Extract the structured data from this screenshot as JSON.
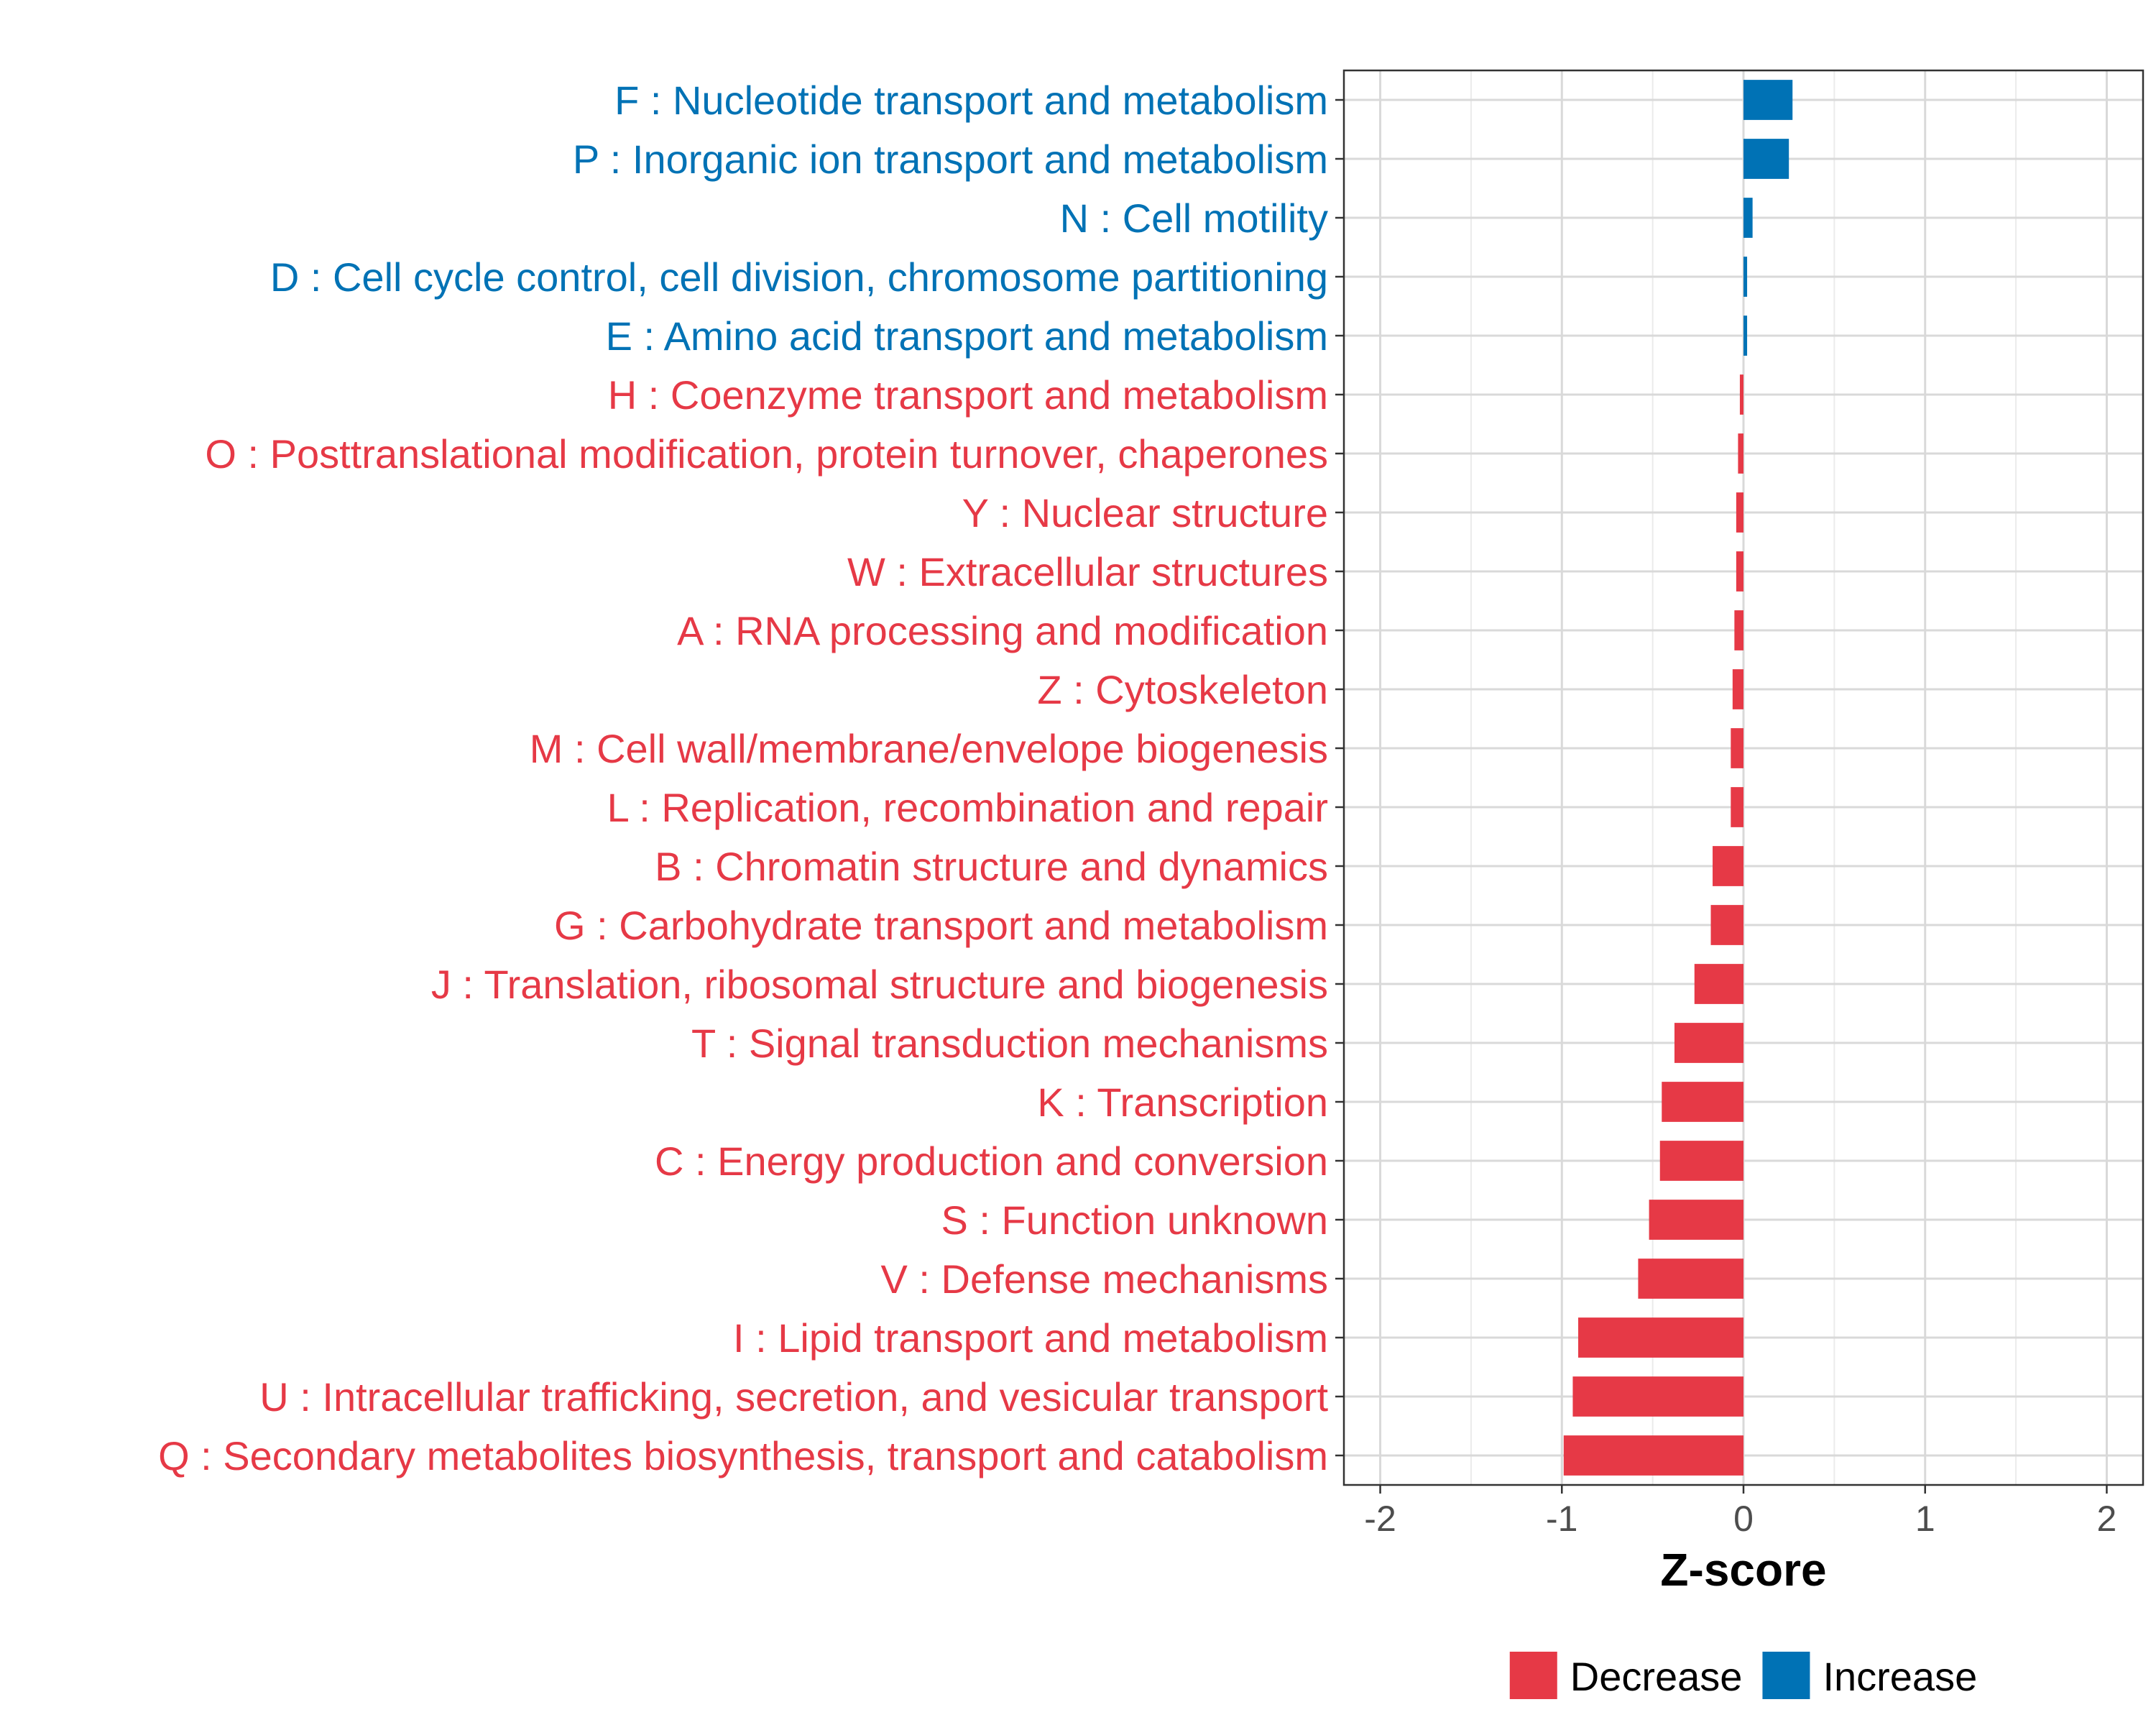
{
  "chart_data": {
    "type": "bar",
    "orientation": "horizontal",
    "xlabel": "Z-score",
    "ylabel": "",
    "xlim": [
      -2.2,
      2.2
    ],
    "x_ticks": [
      -2,
      -1,
      0,
      1,
      2
    ],
    "x_tick_labels": [
      "-2",
      "-1",
      "0",
      "1",
      "2"
    ],
    "grid": true,
    "legend_position": "bottom",
    "colors": {
      "Decrease": "#e63946",
      "Increase": "#0072b5"
    },
    "legend": [
      {
        "label": "Decrease",
        "color": "#e63946"
      },
      {
        "label": "Increase",
        "color": "#0072b5"
      }
    ],
    "categories": [
      "F : Nucleotide transport and metabolism",
      "P : Inorganic ion transport and metabolism",
      "N : Cell motility",
      "D : Cell cycle control, cell division, chromosome partitioning",
      "E : Amino acid transport and metabolism",
      "H : Coenzyme transport and metabolism",
      "O : Posttranslational modification, protein turnover, chaperones",
      "Y : Nuclear structure",
      "W : Extracellular structures",
      "A : RNA processing and modification",
      "Z : Cytoskeleton",
      "M : Cell wall/membrane/envelope biogenesis",
      "L : Replication, recombination and repair",
      "B : Chromatin structure and dynamics",
      "G : Carbohydrate transport and metabolism",
      "J : Translation, ribosomal structure and biogenesis",
      "T : Signal transduction mechanisms",
      "K : Transcription",
      "C : Energy production and conversion",
      "S : Function unknown",
      "V : Defense mechanisms",
      "I : Lipid transport and metabolism",
      "U : Intracellular trafficking, secretion, and vesicular transport",
      "Q : Secondary metabolites biosynthesis, transport and catabolism"
    ],
    "values": [
      0.27,
      0.25,
      0.05,
      0.02,
      0.02,
      -0.02,
      -0.03,
      -0.04,
      -0.04,
      -0.05,
      -0.06,
      -0.07,
      -0.07,
      -0.17,
      -0.18,
      -0.27,
      -0.38,
      -0.45,
      -0.46,
      -0.52,
      -0.58,
      -0.91,
      -0.94,
      -0.99
    ],
    "groups": [
      "Increase",
      "Increase",
      "Increase",
      "Increase",
      "Increase",
      "Decrease",
      "Decrease",
      "Decrease",
      "Decrease",
      "Decrease",
      "Decrease",
      "Decrease",
      "Decrease",
      "Decrease",
      "Decrease",
      "Decrease",
      "Decrease",
      "Decrease",
      "Decrease",
      "Decrease",
      "Decrease",
      "Decrease",
      "Decrease",
      "Decrease"
    ]
  }
}
